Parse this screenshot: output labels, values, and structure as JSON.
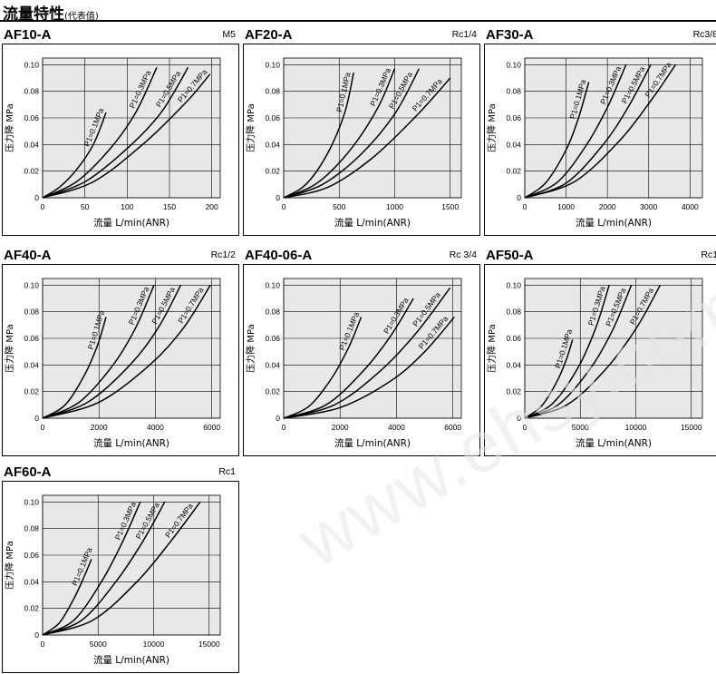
{
  "header": {
    "title": "流量特性",
    "subtitle": "(代表值)"
  },
  "watermark": "www.ehsy.com",
  "colors": {
    "plot_bg": "#e8e8e8",
    "grid": "#000000",
    "curve": "#000000"
  },
  "chart_data": [
    {
      "type": "line",
      "title": "AF10-A",
      "port": "M5",
      "xlabel": "流量 L/min(ANR)",
      "ylabel": "压力降 MPa",
      "xlim": [
        0,
        210
      ],
      "ylim": [
        0,
        0.105
      ],
      "xticks": [
        0,
        50,
        100,
        150,
        200
      ],
      "yticks": [
        0,
        0.02,
        0.04,
        0.06,
        0.08,
        0.1
      ],
      "ytick_labels": [
        "0",
        "0.02",
        "0.04",
        "0.06",
        "0.08",
        "0.10"
      ],
      "series": [
        {
          "name": "P1=0.1MPa",
          "x": [
            0,
            20,
            40,
            60,
            75
          ],
          "y": [
            0,
            0.008,
            0.021,
            0.04,
            0.064
          ]
        },
        {
          "name": "P1=0.3MPa",
          "x": [
            0,
            40,
            80,
            110,
            135
          ],
          "y": [
            0,
            0.012,
            0.037,
            0.064,
            0.098
          ]
        },
        {
          "name": "P1=0.5MPa",
          "x": [
            0,
            50,
            100,
            140,
            172
          ],
          "y": [
            0,
            0.012,
            0.037,
            0.064,
            0.098
          ]
        },
        {
          "name": "P1=0.7MPa",
          "x": [
            0,
            60,
            120,
            170,
            198
          ],
          "y": [
            0,
            0.012,
            0.041,
            0.072,
            0.093
          ]
        }
      ]
    },
    {
      "type": "line",
      "title": "AF20-A",
      "port": "Rc1/4",
      "xlabel": "流量 L/min(ANR)",
      "ylabel": "压力降 MPa",
      "xlim": [
        0,
        1600
      ],
      "ylim": [
        0,
        0.105
      ],
      "xticks": [
        0,
        500,
        1000,
        1500
      ],
      "yticks": [
        0,
        0.02,
        0.04,
        0.06,
        0.08,
        0.1
      ],
      "ytick_labels": [
        "0",
        "0.02",
        "0.04",
        "0.06",
        "0.08",
        "0.10"
      ],
      "series": [
        {
          "name": "P1=0.1MPa",
          "x": [
            0,
            200,
            400,
            550,
            630
          ],
          "y": [
            0,
            0.01,
            0.034,
            0.064,
            0.094
          ]
        },
        {
          "name": "P1=0.3MPa",
          "x": [
            0,
            300,
            600,
            850,
            1000
          ],
          "y": [
            0,
            0.011,
            0.036,
            0.068,
            0.097
          ]
        },
        {
          "name": "P1=0.5MPa",
          "x": [
            0,
            350,
            700,
            1000,
            1220
          ],
          "y": [
            0,
            0.01,
            0.033,
            0.063,
            0.097
          ]
        },
        {
          "name": "P1=0.7MPa",
          "x": [
            0,
            400,
            800,
            1200,
            1500
          ],
          "y": [
            0,
            0.008,
            0.03,
            0.062,
            0.09
          ]
        }
      ]
    },
    {
      "type": "line",
      "title": "AF30-A",
      "port": "Rc3/8",
      "xlabel": "流量 L/min(ANR)",
      "ylabel": "压力降 MPa",
      "xlim": [
        0,
        4300
      ],
      "ylim": [
        0,
        0.105
      ],
      "xticks": [
        0,
        1000,
        2000,
        3000,
        4000
      ],
      "yticks": [
        0,
        0.02,
        0.04,
        0.06,
        0.08,
        0.1
      ],
      "ytick_labels": [
        "0",
        "0.02",
        "0.04",
        "0.06",
        "0.08",
        "0.10"
      ],
      "series": [
        {
          "name": "P1=0.1MPa",
          "x": [
            0,
            500,
            1000,
            1300,
            1550
          ],
          "y": [
            0,
            0.011,
            0.036,
            0.06,
            0.087
          ]
        },
        {
          "name": "P1=0.3MPa",
          "x": [
            0,
            800,
            1500,
            2000,
            2450
          ],
          "y": [
            0,
            0.012,
            0.04,
            0.068,
            0.1
          ]
        },
        {
          "name": "P1=0.5MPa",
          "x": [
            0,
            1000,
            1900,
            2500,
            3050
          ],
          "y": [
            0,
            0.011,
            0.04,
            0.068,
            0.1
          ]
        },
        {
          "name": "P1=0.7MPa",
          "x": [
            0,
            1200,
            2300,
            3100,
            3650
          ],
          "y": [
            0,
            0.012,
            0.043,
            0.075,
            0.1
          ]
        }
      ]
    },
    {
      "type": "line",
      "title": "AF40-A",
      "port": "Rc1/2",
      "xlabel": "流量 L/min(ANR)",
      "ylabel": "压力降 MPa",
      "xlim": [
        0,
        6300
      ],
      "ylim": [
        0,
        0.105
      ],
      "xticks": [
        0,
        2000,
        4000,
        6000
      ],
      "yticks": [
        0,
        0.02,
        0.04,
        0.06,
        0.08,
        0.1
      ],
      "ytick_labels": [
        "0",
        "0.02",
        "0.04",
        "0.06",
        "0.08",
        "0.10"
      ],
      "series": [
        {
          "name": "P1=0.1MPa",
          "x": [
            0,
            800,
            1500,
            1950,
            2250
          ],
          "y": [
            0,
            0.01,
            0.033,
            0.055,
            0.076
          ]
        },
        {
          "name": "P1=0.3MPa",
          "x": [
            0,
            1300,
            2500,
            3300,
            3950
          ],
          "y": [
            0,
            0.012,
            0.04,
            0.068,
            0.1
          ]
        },
        {
          "name": "P1=0.5MPa",
          "x": [
            0,
            1600,
            3100,
            4100,
            4900
          ],
          "y": [
            0,
            0.012,
            0.04,
            0.068,
            0.1
          ]
        },
        {
          "name": "P1=0.7MPa",
          "x": [
            0,
            2000,
            3800,
            5000,
            5950
          ],
          "y": [
            0,
            0.012,
            0.04,
            0.068,
            0.1
          ]
        }
      ]
    },
    {
      "type": "line",
      "title": "AF40-06-A",
      "port": "Rc 3/4",
      "xlabel": "流量 L/min(ANR)",
      "ylabel": "压力降 MPa",
      "xlim": [
        0,
        6300
      ],
      "ylim": [
        0,
        0.105
      ],
      "xticks": [
        0,
        2000,
        4000,
        6000
      ],
      "yticks": [
        0,
        0.02,
        0.04,
        0.06,
        0.08,
        0.1
      ],
      "ytick_labels": [
        "0",
        "0.02",
        "0.04",
        "0.06",
        "0.08",
        "0.10"
      ],
      "series": [
        {
          "name": "P1=0.1MPa",
          "x": [
            0,
            900,
            1700,
            2300,
            2750
          ],
          "y": [
            0,
            0.009,
            0.03,
            0.053,
            0.076
          ]
        },
        {
          "name": "P1=0.3MPa",
          "x": [
            0,
            1500,
            2800,
            3800,
            4600
          ],
          "y": [
            0,
            0.01,
            0.035,
            0.062,
            0.09
          ]
        },
        {
          "name": "P1=0.5MPa",
          "x": [
            0,
            1800,
            3400,
            4700,
            5900
          ],
          "y": [
            0,
            0.01,
            0.035,
            0.064,
            0.098
          ]
        },
        {
          "name": "P1=0.7MPa",
          "x": [
            0,
            2000,
            3800,
            5000,
            6050
          ],
          "y": [
            0,
            0.008,
            0.028,
            0.05,
            0.076
          ]
        }
      ]
    },
    {
      "type": "line",
      "title": "AF50-A",
      "port": "Rc1",
      "xlabel": "流量 L/min(ANR)",
      "ylabel": "压力降 MPa",
      "xlim": [
        0,
        16000
      ],
      "ylim": [
        0,
        0.105
      ],
      "xticks": [
        0,
        5000,
        10000,
        15000
      ],
      "yticks": [
        0,
        0.02,
        0.04,
        0.06,
        0.08,
        0.1
      ],
      "ytick_labels": [
        "0",
        "0.02",
        "0.04",
        "0.06",
        "0.08",
        "0.10"
      ],
      "series": [
        {
          "name": "P1=0.1MPa",
          "x": [
            0,
            1500,
            2800,
            3700,
            4300
          ],
          "y": [
            0,
            0.009,
            0.026,
            0.043,
            0.059
          ]
        },
        {
          "name": "P1=0.3MPa",
          "x": [
            0,
            2500,
            4800,
            6400,
            7600
          ],
          "y": [
            0,
            0.011,
            0.038,
            0.068,
            0.1
          ]
        },
        {
          "name": "P1=0.5MPa",
          "x": [
            0,
            3000,
            5800,
            7900,
            9600
          ],
          "y": [
            0,
            0.01,
            0.036,
            0.066,
            0.1
          ]
        },
        {
          "name": "P1=0.7MPa",
          "x": [
            0,
            3800,
            7200,
            10000,
            12200
          ],
          "y": [
            0,
            0.01,
            0.036,
            0.067,
            0.1
          ]
        }
      ]
    },
    {
      "type": "line",
      "title": "AF60-A",
      "port": "Rc1",
      "xlabel": "流量 L/min(ANR)",
      "ylabel": "压力降 MPa",
      "xlim": [
        0,
        16000
      ],
      "ylim": [
        0,
        0.105
      ],
      "xticks": [
        0,
        5000,
        10000,
        15000
      ],
      "yticks": [
        0,
        0.02,
        0.04,
        0.06,
        0.08,
        0.1
      ],
      "ytick_labels": [
        "0",
        "0.02",
        "0.04",
        "0.06",
        "0.08",
        "0.10"
      ],
      "series": [
        {
          "name": "P1=0.1MPa",
          "x": [
            0,
            1500,
            2800,
            3700,
            4400
          ],
          "y": [
            0,
            0.009,
            0.027,
            0.043,
            0.057
          ]
        },
        {
          "name": "P1=0.3MPa",
          "x": [
            0,
            2800,
            5300,
            7200,
            8800
          ],
          "y": [
            0,
            0.011,
            0.04,
            0.07,
            0.1
          ]
        },
        {
          "name": "P1=0.5MPa",
          "x": [
            0,
            3500,
            6600,
            9000,
            11000
          ],
          "y": [
            0,
            0.011,
            0.04,
            0.07,
            0.1
          ]
        },
        {
          "name": "P1=0.7MPa",
          "x": [
            0,
            4500,
            8500,
            11500,
            14200
          ],
          "y": [
            0,
            0.011,
            0.04,
            0.07,
            0.1
          ]
        }
      ]
    }
  ]
}
